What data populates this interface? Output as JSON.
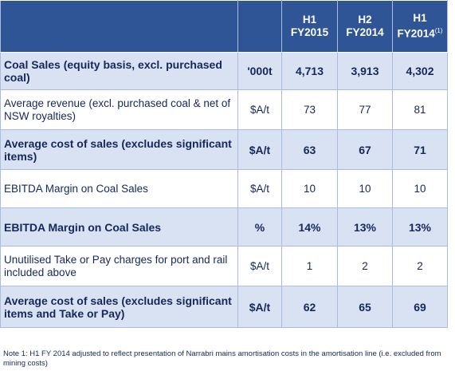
{
  "table": {
    "header": [
      {
        "line1": "H1",
        "line2": "FY2015"
      },
      {
        "line1": "H2",
        "line2": "FY2014"
      },
      {
        "line1": "H1",
        "line2": "FY2014",
        "sup": "(1)"
      }
    ],
    "rows": [
      {
        "label": "Coal Sales (equity basis, excl. purchased coal)",
        "unit": "'000t",
        "values": [
          "4,713",
          "3,913",
          "4,302"
        ],
        "bold": true
      },
      {
        "label": "Average revenue (excl. purchased coal & net of NSW royalties)",
        "unit": "$A/t",
        "values": [
          "73",
          "77",
          "81"
        ],
        "bold": false
      },
      {
        "label": "Average cost of sales (excludes significant items)",
        "unit": "$A/t",
        "values": [
          "63",
          "67",
          "71"
        ],
        "bold": true
      },
      {
        "label": "EBITDA Margin on Coal Sales",
        "unit": "$A/t",
        "values": [
          "10",
          "10",
          "10"
        ],
        "bold": false
      },
      {
        "label": "EBITDA Margin on Coal Sales",
        "unit": "%",
        "values": [
          "14%",
          "13%",
          "13%"
        ],
        "bold": true
      },
      {
        "label": "Unutilised Take or Pay charges for port and rail included above",
        "unit": "$A/t",
        "values": [
          "1",
          "2",
          "2"
        ],
        "bold": false
      },
      {
        "label": "Average cost of sales (excludes significant items and Take or Pay)",
        "unit": "$A/t",
        "values": [
          "62",
          "65",
          "69"
        ],
        "bold": true
      }
    ],
    "footnote": "Note 1: H1 FY 2014 adjusted to reflect presentation of Narrabri mains amortisation costs in the amortisation line (i.e. excluded from mining costs)"
  }
}
